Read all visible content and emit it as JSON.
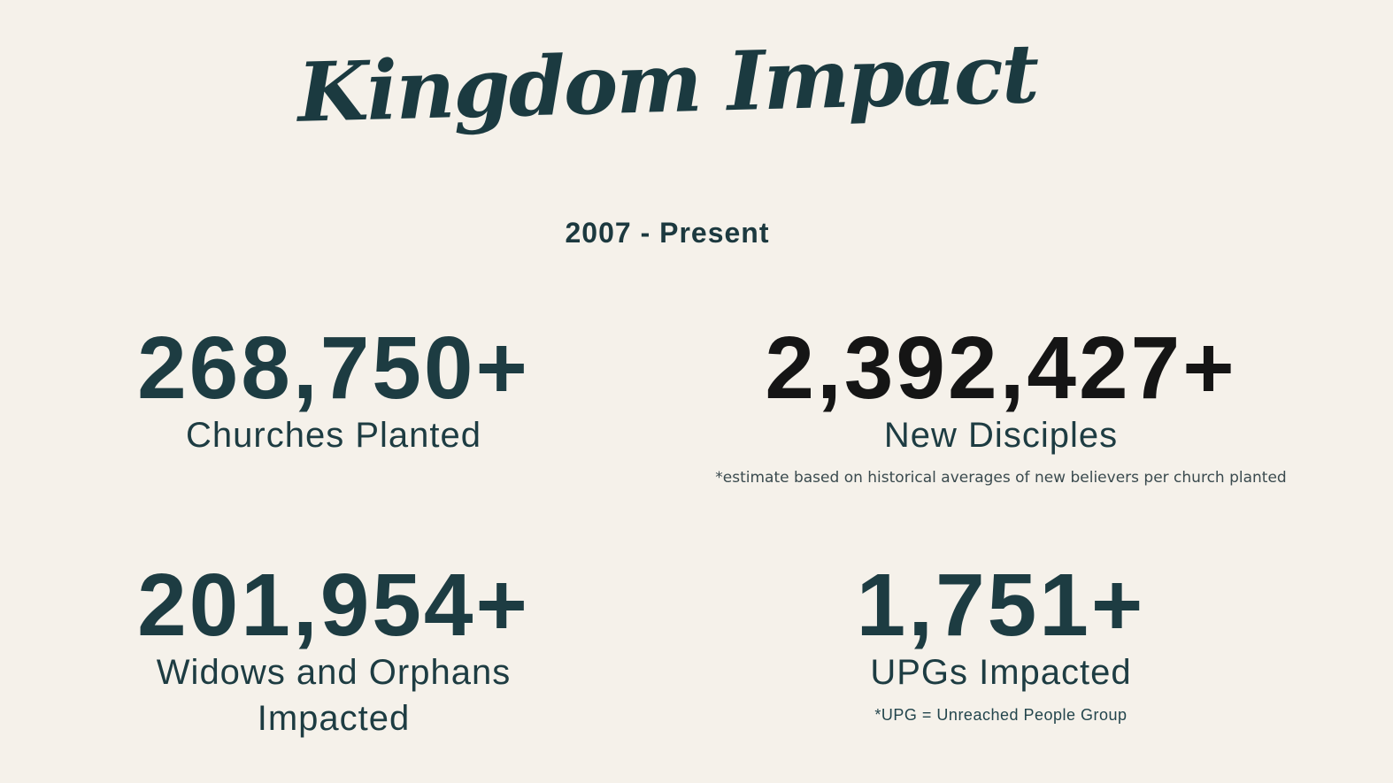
{
  "colors": {
    "background": "#f5f1ea",
    "teal": "#1d3c42",
    "number_dark": "#151515",
    "title": "#1b3a40"
  },
  "header": {
    "title": "Kingdom Impact",
    "subtitle": "2007 - Present"
  },
  "stats": [
    {
      "value": "268,750+",
      "label": "Churches Planted"
    },
    {
      "value": "2,392,427+",
      "label": "New Disciples",
      "note": "*estimate based on historical averages of new believers per church planted"
    },
    {
      "value": "201,954+",
      "label": "Widows and Orphans Impacted"
    },
    {
      "value": "1,751+",
      "label": "UPGs Impacted",
      "note": "*UPG = Unreached People Group"
    }
  ]
}
